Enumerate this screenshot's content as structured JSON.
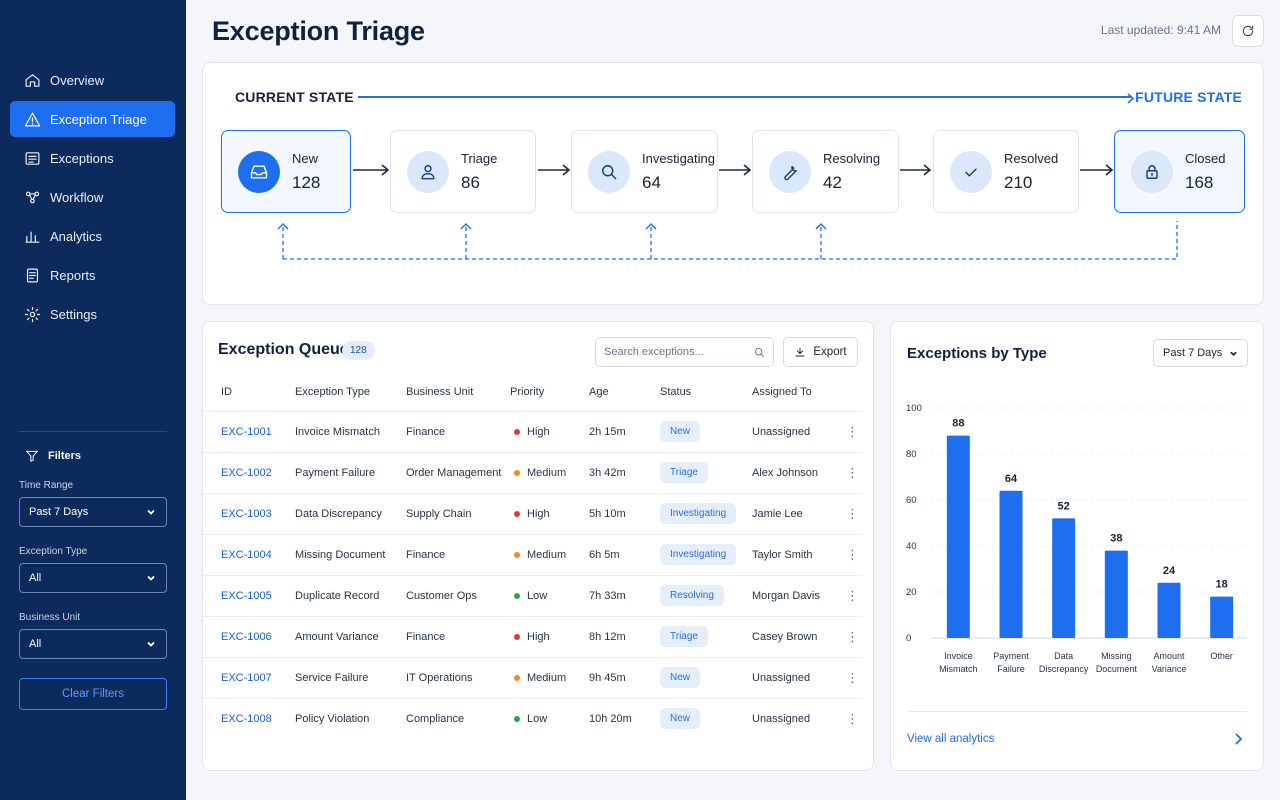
{
  "sidebar": {
    "items": [
      {
        "label": "Overview",
        "icon": "home-icon"
      },
      {
        "label": "Exception Triage",
        "icon": "warning-icon",
        "active": true
      },
      {
        "label": "Exceptions",
        "icon": "list-icon"
      },
      {
        "label": "Workflow",
        "icon": "workflow-icon"
      },
      {
        "label": "Analytics",
        "icon": "bar-chart-icon"
      },
      {
        "label": "Reports",
        "icon": "document-icon"
      },
      {
        "label": "Settings",
        "icon": "gear-icon"
      }
    ],
    "filters": {
      "title": "Filters",
      "time_range_label": "Time Range",
      "time_range_value": "Past 7 Days",
      "exception_type_label": "Exception Type",
      "exception_type_value": "All",
      "business_unit_label": "Business Unit",
      "business_unit_value": "All",
      "clear_label": "Clear Filters"
    }
  },
  "header": {
    "title": "Exception Triage",
    "last_updated": "Last updated: 9:41 AM"
  },
  "flow": {
    "current_label": "CURRENT STATE",
    "future_label": "FUTURE STATE",
    "stages": [
      {
        "name": "New",
        "count": "128",
        "icon": "inbox-icon"
      },
      {
        "name": "Triage",
        "count": "86",
        "icon": "user-icon"
      },
      {
        "name": "Investigating",
        "count": "64",
        "icon": "search-icon"
      },
      {
        "name": "Resolving",
        "count": "42",
        "icon": "wrench-icon"
      },
      {
        "name": "Resolved",
        "count": "210",
        "icon": "check-icon"
      },
      {
        "name": "Closed",
        "count": "168",
        "icon": "lock-icon"
      }
    ]
  },
  "queue": {
    "title": "Exception Queue",
    "badge": "128",
    "search_placeholder": "Search exceptions...",
    "export_label": "Export",
    "columns": [
      "ID",
      "Exception Type",
      "Business Unit",
      "Priority",
      "Age",
      "Status",
      "Assigned To"
    ],
    "rows": [
      {
        "id": "EXC-1001",
        "type": "Invoice Mismatch",
        "unit": "Finance",
        "priority": "High",
        "age": "2h 15m",
        "status": "New",
        "assigned": "Unassigned"
      },
      {
        "id": "EXC-1002",
        "type": "Payment Failure",
        "unit": "Order Management",
        "priority": "Medium",
        "age": "3h 42m",
        "status": "Triage",
        "assigned": "Alex Johnson"
      },
      {
        "id": "EXC-1003",
        "type": "Data Discrepancy",
        "unit": "Supply Chain",
        "priority": "High",
        "age": "5h 10m",
        "status": "Investigating",
        "assigned": "Jamie Lee"
      },
      {
        "id": "EXC-1004",
        "type": "Missing Document",
        "unit": "Finance",
        "priority": "Medium",
        "age": "6h 5m",
        "status": "Investigating",
        "assigned": "Taylor Smith"
      },
      {
        "id": "EXC-1005",
        "type": "Duplicate Record",
        "unit": "Customer Ops",
        "priority": "Low",
        "age": "7h 33m",
        "status": "Resolving",
        "assigned": "Morgan Davis"
      },
      {
        "id": "EXC-1006",
        "type": "Amount Variance",
        "unit": "Finance",
        "priority": "High",
        "age": "8h 12m",
        "status": "Triage",
        "assigned": "Casey Brown"
      },
      {
        "id": "EXC-1007",
        "type": "Service Failure",
        "unit": "IT Operations",
        "priority": "Medium",
        "age": "9h 45m",
        "status": "New",
        "assigned": "Unassigned"
      },
      {
        "id": "EXC-1008",
        "type": "Policy Violation",
        "unit": "Compliance",
        "priority": "Low",
        "age": "10h 20m",
        "status": "New",
        "assigned": "Unassigned"
      }
    ],
    "priority_colors": {
      "High": "#d93a3a",
      "Medium": "#f08a1e",
      "Low": "#27a845"
    }
  },
  "chart_panel": {
    "title": "Exceptions by Type",
    "range_value": "Past 7 Days",
    "link_label": "View all analytics"
  },
  "chart_data": {
    "type": "bar",
    "categories": [
      [
        "Invoice",
        "Mismatch"
      ],
      [
        "Payment",
        "Failure"
      ],
      [
        "Data",
        "Discrepancy"
      ],
      [
        "Missing",
        "Document"
      ],
      [
        "Amount",
        "Variance"
      ],
      [
        "Other"
      ]
    ],
    "values": [
      88,
      64,
      52,
      38,
      24,
      18
    ],
    "ylim": [
      0,
      100
    ],
    "yticks": [
      0,
      20,
      40,
      60,
      80,
      100
    ],
    "grid": true,
    "color": "#1e6ff0"
  },
  "colors": {
    "accent": "#1e6ff0",
    "sidebar": "#0d2a5c"
  }
}
